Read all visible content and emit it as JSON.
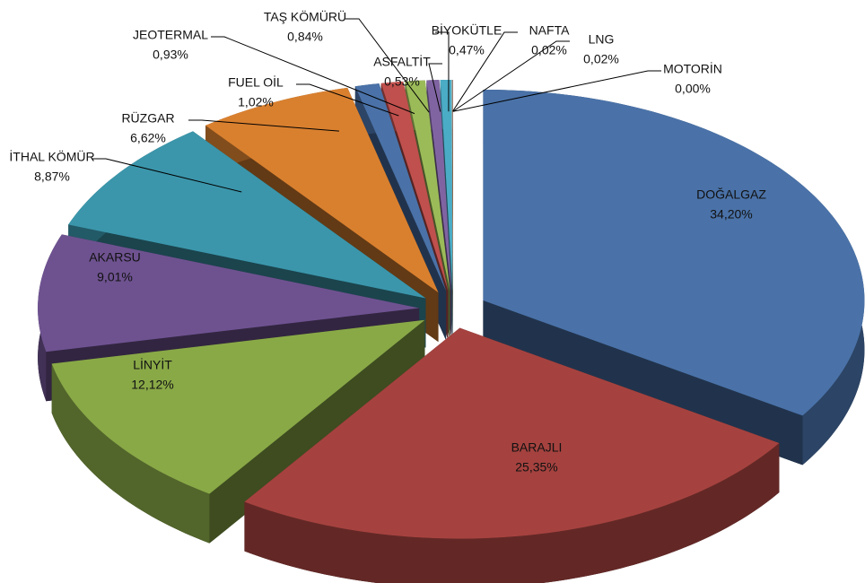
{
  "chart_data": {
    "type": "pie3d",
    "categories": [
      "DOĞALGAZ",
      "BARAJLI",
      "LİNYİT",
      "AKARSU",
      "İTHAL KÖMÜR",
      "RÜZGAR",
      "FUEL OİL",
      "JEOTERMAL",
      "TAŞ KÖMÜRÜ",
      "ASFALTİT",
      "BİYOKÜTLE",
      "NAFTA",
      "LNG",
      "MOTORİN"
    ],
    "values": [
      34.2,
      25.35,
      12.12,
      9.01,
      8.87,
      6.62,
      1.02,
      0.93,
      0.84,
      0.53,
      0.47,
      0.02,
      0.02,
      0.0
    ],
    "value_labels": [
      "34,20%",
      "25,35%",
      "12,12%",
      "9,01%",
      "8,87%",
      "6,62%",
      "1,02%",
      "0,93%",
      "0,84%",
      "0,53%",
      "0,47%",
      "0,02%",
      "0,02%",
      "0,00%"
    ],
    "colors": [
      "#4a72a8",
      "#a5423f",
      "#89a947",
      "#6e5290",
      "#3b96ab",
      "#d9802f",
      "#4a72a8",
      "#c0504d",
      "#9bbb59",
      "#8064a2",
      "#4bacc6",
      "#f79646",
      "#4a72a8",
      "#c0504d"
    ]
  }
}
